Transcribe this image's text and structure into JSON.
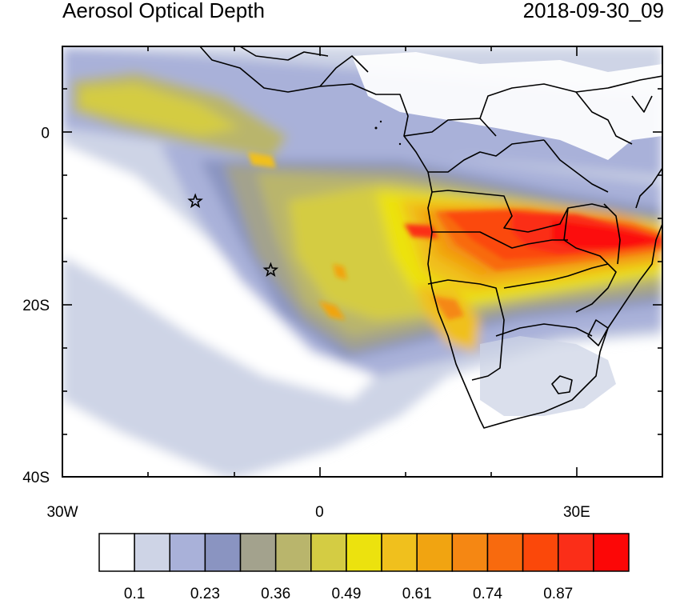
{
  "title": "Aerosol Optical Depth",
  "timestamp": "2018-09-30_09",
  "axes": {
    "y_ticks": [
      {
        "value": 0,
        "label": "0"
      },
      {
        "value": -20,
        "label": "20S"
      },
      {
        "value": -40,
        "label": "40S"
      }
    ],
    "x_ticks": [
      {
        "value": -30,
        "label": "30W"
      },
      {
        "value": 0,
        "label": "0"
      },
      {
        "value": 30,
        "label": "30E"
      }
    ],
    "lon_range": [
      -30,
      40
    ],
    "lat_range": [
      -40,
      10
    ]
  },
  "colorbar": {
    "colors": [
      "#ffffff",
      "#ced4e6",
      "#a9b1d9",
      "#8a94c1",
      "#a3a28d",
      "#b9b56c",
      "#d4cc43",
      "#ece20e",
      "#f0c01d",
      "#f1a411",
      "#f58713",
      "#f86a0e",
      "#fb480a",
      "#fb2e18",
      "#fc0707"
    ],
    "labels": [
      "0.1",
      "0.23",
      "0.36",
      "0.49",
      "0.61",
      "0.74",
      "0.87"
    ]
  },
  "markers": [
    {
      "name": "star",
      "lon": -14.5,
      "lat": -8
    },
    {
      "name": "star",
      "lon": -5.7,
      "lat": -16
    }
  ]
}
